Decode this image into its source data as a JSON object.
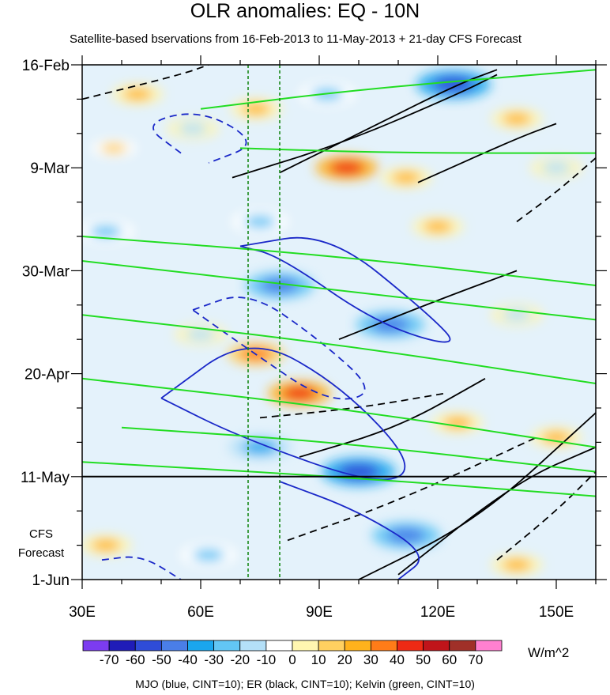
{
  "chart_data": {
    "type": "heatmap",
    "title": "OLR anomalies: EQ - 10N",
    "subtitle": "Satellite-based bservations from 16-Feb-2013 to 11-May-2013 + 21-day CFS Forecast",
    "x_tick_labels": [
      "30E",
      "60E",
      "90E",
      "120E",
      "150E"
    ],
    "x_ticks": [
      30,
      60,
      90,
      120,
      150
    ],
    "xlim": [
      30,
      160
    ],
    "y_tick_labels": [
      "16-Feb",
      "9-Mar",
      "30-Mar",
      "20-Apr",
      "11-May",
      "1-Jun"
    ],
    "y_ticks": [
      "2013-02-16",
      "2013-03-09",
      "2013-03-30",
      "2013-04-20",
      "2013-05-11",
      "2013-06-01"
    ],
    "ylim": [
      "2013-02-16",
      "2013-06-01"
    ],
    "forecast_label": [
      "CFS",
      "Forecast"
    ],
    "colorbar": {
      "levels": [
        -70,
        -60,
        -50,
        -40,
        -30,
        -20,
        -10,
        0,
        10,
        20,
        30,
        40,
        50,
        60,
        70
      ],
      "level_labels": [
        "-70",
        "-60",
        "-50",
        "-40",
        "-30",
        "-20",
        "-10",
        "0",
        "10",
        "20",
        "30",
        "40",
        "50",
        "60",
        "70"
      ],
      "colors": [
        "#7c3cf0",
        "#1f1cb8",
        "#2f4cd8",
        "#4a7ee8",
        "#1aa6ee",
        "#62c6f4",
        "#b4e0f8",
        "#ffffff",
        "#fff6b0",
        "#ffd060",
        "#ffb21c",
        "#ff7c18",
        "#ee2a14",
        "#c0141a",
        "#a03028",
        "#ff80d0"
      ],
      "units": "W/m^2"
    },
    "note": "MJO (blue, CINT=10); ER (black, CINT=10); Kelvin (green, CINT=10)",
    "reference_lines": {
      "longitudes": [
        72,
        80
      ],
      "observation_end": "2013-05-11"
    },
    "series": [
      {
        "name": "MJO",
        "color": "#1a28c8"
      },
      {
        "name": "ER",
        "color": "#000000"
      },
      {
        "name": "Kelvin",
        "color": "#22dd22"
      }
    ],
    "anomaly_blobs": [
      {
        "lon": 124,
        "date": "2013-02-20",
        "value": -60
      },
      {
        "lon": 92,
        "date": "2013-02-22",
        "value": -30
      },
      {
        "lon": 44,
        "date": "2013-02-22",
        "value": 20
      },
      {
        "lon": 74,
        "date": "2013-02-25",
        "value": 20
      },
      {
        "lon": 140,
        "date": "2013-02-27",
        "value": 20
      },
      {
        "lon": 58,
        "date": "2013-03-01",
        "value": -20
      },
      {
        "lon": 38,
        "date": "2013-03-05",
        "value": 10
      },
      {
        "lon": 97,
        "date": "2013-03-09",
        "value": 40
      },
      {
        "lon": 112,
        "date": "2013-03-11",
        "value": 20
      },
      {
        "lon": 150,
        "date": "2013-03-09",
        "value": -20
      },
      {
        "lon": 75,
        "date": "2013-03-20",
        "value": -30
      },
      {
        "lon": 120,
        "date": "2013-03-21",
        "value": 20
      },
      {
        "lon": 36,
        "date": "2013-03-22",
        "value": -30
      },
      {
        "lon": 80,
        "date": "2013-04-02",
        "value": -50
      },
      {
        "lon": 108,
        "date": "2013-04-10",
        "value": -50
      },
      {
        "lon": 60,
        "date": "2013-04-12",
        "value": -20
      },
      {
        "lon": 140,
        "date": "2013-04-08",
        "value": -20
      },
      {
        "lon": 74,
        "date": "2013-04-16",
        "value": 30
      },
      {
        "lon": 85,
        "date": "2013-04-24",
        "value": 40
      },
      {
        "lon": 125,
        "date": "2013-04-30",
        "value": 20
      },
      {
        "lon": 150,
        "date": "2013-05-03",
        "value": 20
      },
      {
        "lon": 75,
        "date": "2013-05-05",
        "value": -40
      },
      {
        "lon": 100,
        "date": "2013-05-10",
        "value": -60
      },
      {
        "lon": 36,
        "date": "2013-05-25",
        "value": 20
      },
      {
        "lon": 62,
        "date": "2013-05-27",
        "value": -30
      },
      {
        "lon": 112,
        "date": "2013-05-23",
        "value": -50
      },
      {
        "lon": 140,
        "date": "2013-05-29",
        "value": 20
      }
    ],
    "contours": [
      {
        "series": "ER",
        "dashed": false,
        "points": [
          [
            80,
            "2013-03-10"
          ],
          [
            105,
            "2013-02-28"
          ],
          [
            125,
            "2013-02-20"
          ],
          [
            135,
            "2013-02-17"
          ]
        ]
      },
      {
        "series": "ER",
        "dashed": false,
        "points": [
          [
            68,
            "2013-03-11"
          ],
          [
            96,
            "2013-03-04"
          ],
          [
            125,
            "2013-02-22"
          ],
          [
            135,
            "2013-02-18"
          ]
        ]
      },
      {
        "series": "ER",
        "dashed": false,
        "points": [
          [
            115,
            "2013-03-12"
          ],
          [
            140,
            "2013-03-03"
          ],
          [
            150,
            "2013-02-28"
          ]
        ]
      },
      {
        "series": "ER",
        "dashed": true,
        "points": [
          [
            30,
            "2013-02-23"
          ],
          [
            55,
            "2013-02-18"
          ],
          [
            62,
            "2013-02-16"
          ]
        ]
      },
      {
        "series": "ER",
        "dashed": true,
        "points": [
          [
            140,
            "2013-03-20"
          ],
          [
            150,
            "2013-03-14"
          ],
          [
            160,
            "2013-03-07"
          ]
        ]
      },
      {
        "series": "ER",
        "dashed": false,
        "points": [
          [
            95,
            "2013-04-13"
          ],
          [
            120,
            "2013-04-05"
          ],
          [
            140,
            "2013-03-30"
          ]
        ]
      },
      {
        "series": "ER",
        "dashed": true,
        "points": [
          [
            75,
            "2013-04-29"
          ],
          [
            100,
            "2013-04-27"
          ],
          [
            122,
            "2013-04-24"
          ]
        ]
      },
      {
        "series": "ER",
        "dashed": false,
        "points": [
          [
            85,
            "2013-05-07"
          ],
          [
            110,
            "2013-05-01"
          ],
          [
            132,
            "2013-04-21"
          ]
        ]
      },
      {
        "series": "ER",
        "dashed": true,
        "points": [
          [
            82,
            "2013-05-24"
          ],
          [
            110,
            "2013-05-16"
          ],
          [
            145,
            "2013-05-03"
          ]
        ]
      },
      {
        "series": "ER",
        "dashed": false,
        "points": [
          [
            100,
            "2013-06-01"
          ],
          [
            130,
            "2013-05-20"
          ],
          [
            160,
            "2013-04-28"
          ]
        ]
      },
      {
        "series": "ER",
        "dashed": false,
        "points": [
          [
            110,
            "2013-05-31"
          ],
          [
            140,
            "2013-05-12"
          ],
          [
            160,
            "2013-05-05"
          ]
        ]
      },
      {
        "series": "ER",
        "dashed": true,
        "points": [
          [
            135,
            "2013-05-28"
          ],
          [
            150,
            "2013-05-18"
          ],
          [
            160,
            "2013-05-10"
          ]
        ]
      },
      {
        "series": "MJO",
        "dashed": true,
        "points": [
          [
            55,
            "2013-03-06"
          ],
          [
            45,
            "2013-02-28"
          ],
          [
            60,
            "2013-02-25"
          ],
          [
            75,
            "2013-03-04"
          ],
          [
            62,
            "2013-03-08"
          ]
        ]
      },
      {
        "series": "MJO",
        "dashed": false,
        "points": [
          [
            70,
            "2013-03-25"
          ],
          [
            92,
            "2013-03-22"
          ],
          [
            118,
            "2013-04-08"
          ],
          [
            126,
            "2013-04-15"
          ],
          [
            105,
            "2013-04-10"
          ],
          [
            80,
            "2013-03-27"
          ],
          [
            70,
            "2013-03-25"
          ]
        ]
      },
      {
        "series": "MJO",
        "dashed": false,
        "points": [
          [
            50,
            "2013-04-25"
          ],
          [
            72,
            "2013-04-12"
          ],
          [
            95,
            "2013-04-22"
          ],
          [
            115,
            "2013-05-09"
          ],
          [
            105,
            "2013-05-13"
          ],
          [
            70,
            "2013-05-03"
          ],
          [
            50,
            "2013-04-25"
          ]
        ]
      },
      {
        "series": "MJO",
        "dashed": true,
        "points": [
          [
            58,
            "2013-04-07"
          ],
          [
            72,
            "2013-04-03"
          ],
          [
            90,
            "2013-04-13"
          ],
          [
            105,
            "2013-04-24"
          ],
          [
            92,
            "2013-04-26"
          ],
          [
            72,
            "2013-04-15"
          ],
          [
            58,
            "2013-04-07"
          ]
        ]
      },
      {
        "series": "MJO",
        "dashed": false,
        "points": [
          [
            80,
            "2013-05-12"
          ],
          [
            100,
            "2013-05-18"
          ],
          [
            118,
            "2013-05-27"
          ],
          [
            110,
            "2013-06-01"
          ]
        ]
      },
      {
        "series": "MJO",
        "dashed": true,
        "points": [
          [
            35,
            "2013-05-28"
          ],
          [
            45,
            "2013-05-27"
          ],
          [
            55,
            "2013-06-01"
          ]
        ]
      },
      {
        "series": "Kelvin",
        "dashed": false,
        "points": [
          [
            30,
            "2013-03-23"
          ],
          [
            95,
            "2013-03-27"
          ],
          [
            160,
            "2013-04-02"
          ]
        ]
      },
      {
        "series": "Kelvin",
        "dashed": false,
        "points": [
          [
            30,
            "2013-03-28"
          ],
          [
            95,
            "2013-04-03"
          ],
          [
            160,
            "2013-04-09"
          ]
        ]
      },
      {
        "series": "Kelvin",
        "dashed": false,
        "points": [
          [
            30,
            "2013-04-08"
          ],
          [
            95,
            "2013-04-14"
          ],
          [
            160,
            "2013-04-22"
          ]
        ]
      },
      {
        "series": "Kelvin",
        "dashed": false,
        "points": [
          [
            30,
            "2013-04-21"
          ],
          [
            95,
            "2013-04-27"
          ],
          [
            160,
            "2013-05-05"
          ]
        ]
      },
      {
        "series": "Kelvin",
        "dashed": false,
        "points": [
          [
            40,
            "2013-05-01"
          ],
          [
            95,
            "2013-05-04"
          ],
          [
            160,
            "2013-05-10"
          ]
        ]
      },
      {
        "series": "Kelvin",
        "dashed": false,
        "points": [
          [
            30,
            "2013-05-08"
          ],
          [
            95,
            "2013-05-11"
          ],
          [
            160,
            "2013-05-15"
          ]
        ]
      },
      {
        "series": "Kelvin",
        "dashed": false,
        "points": [
          [
            60,
            "2013-02-25"
          ],
          [
            100,
            "2013-02-21"
          ],
          [
            160,
            "2013-02-17"
          ]
        ]
      },
      {
        "series": "Kelvin",
        "dashed": false,
        "points": [
          [
            70,
            "2013-03-05"
          ],
          [
            110,
            "2013-03-06"
          ],
          [
            160,
            "2013-03-06"
          ]
        ]
      }
    ]
  }
}
